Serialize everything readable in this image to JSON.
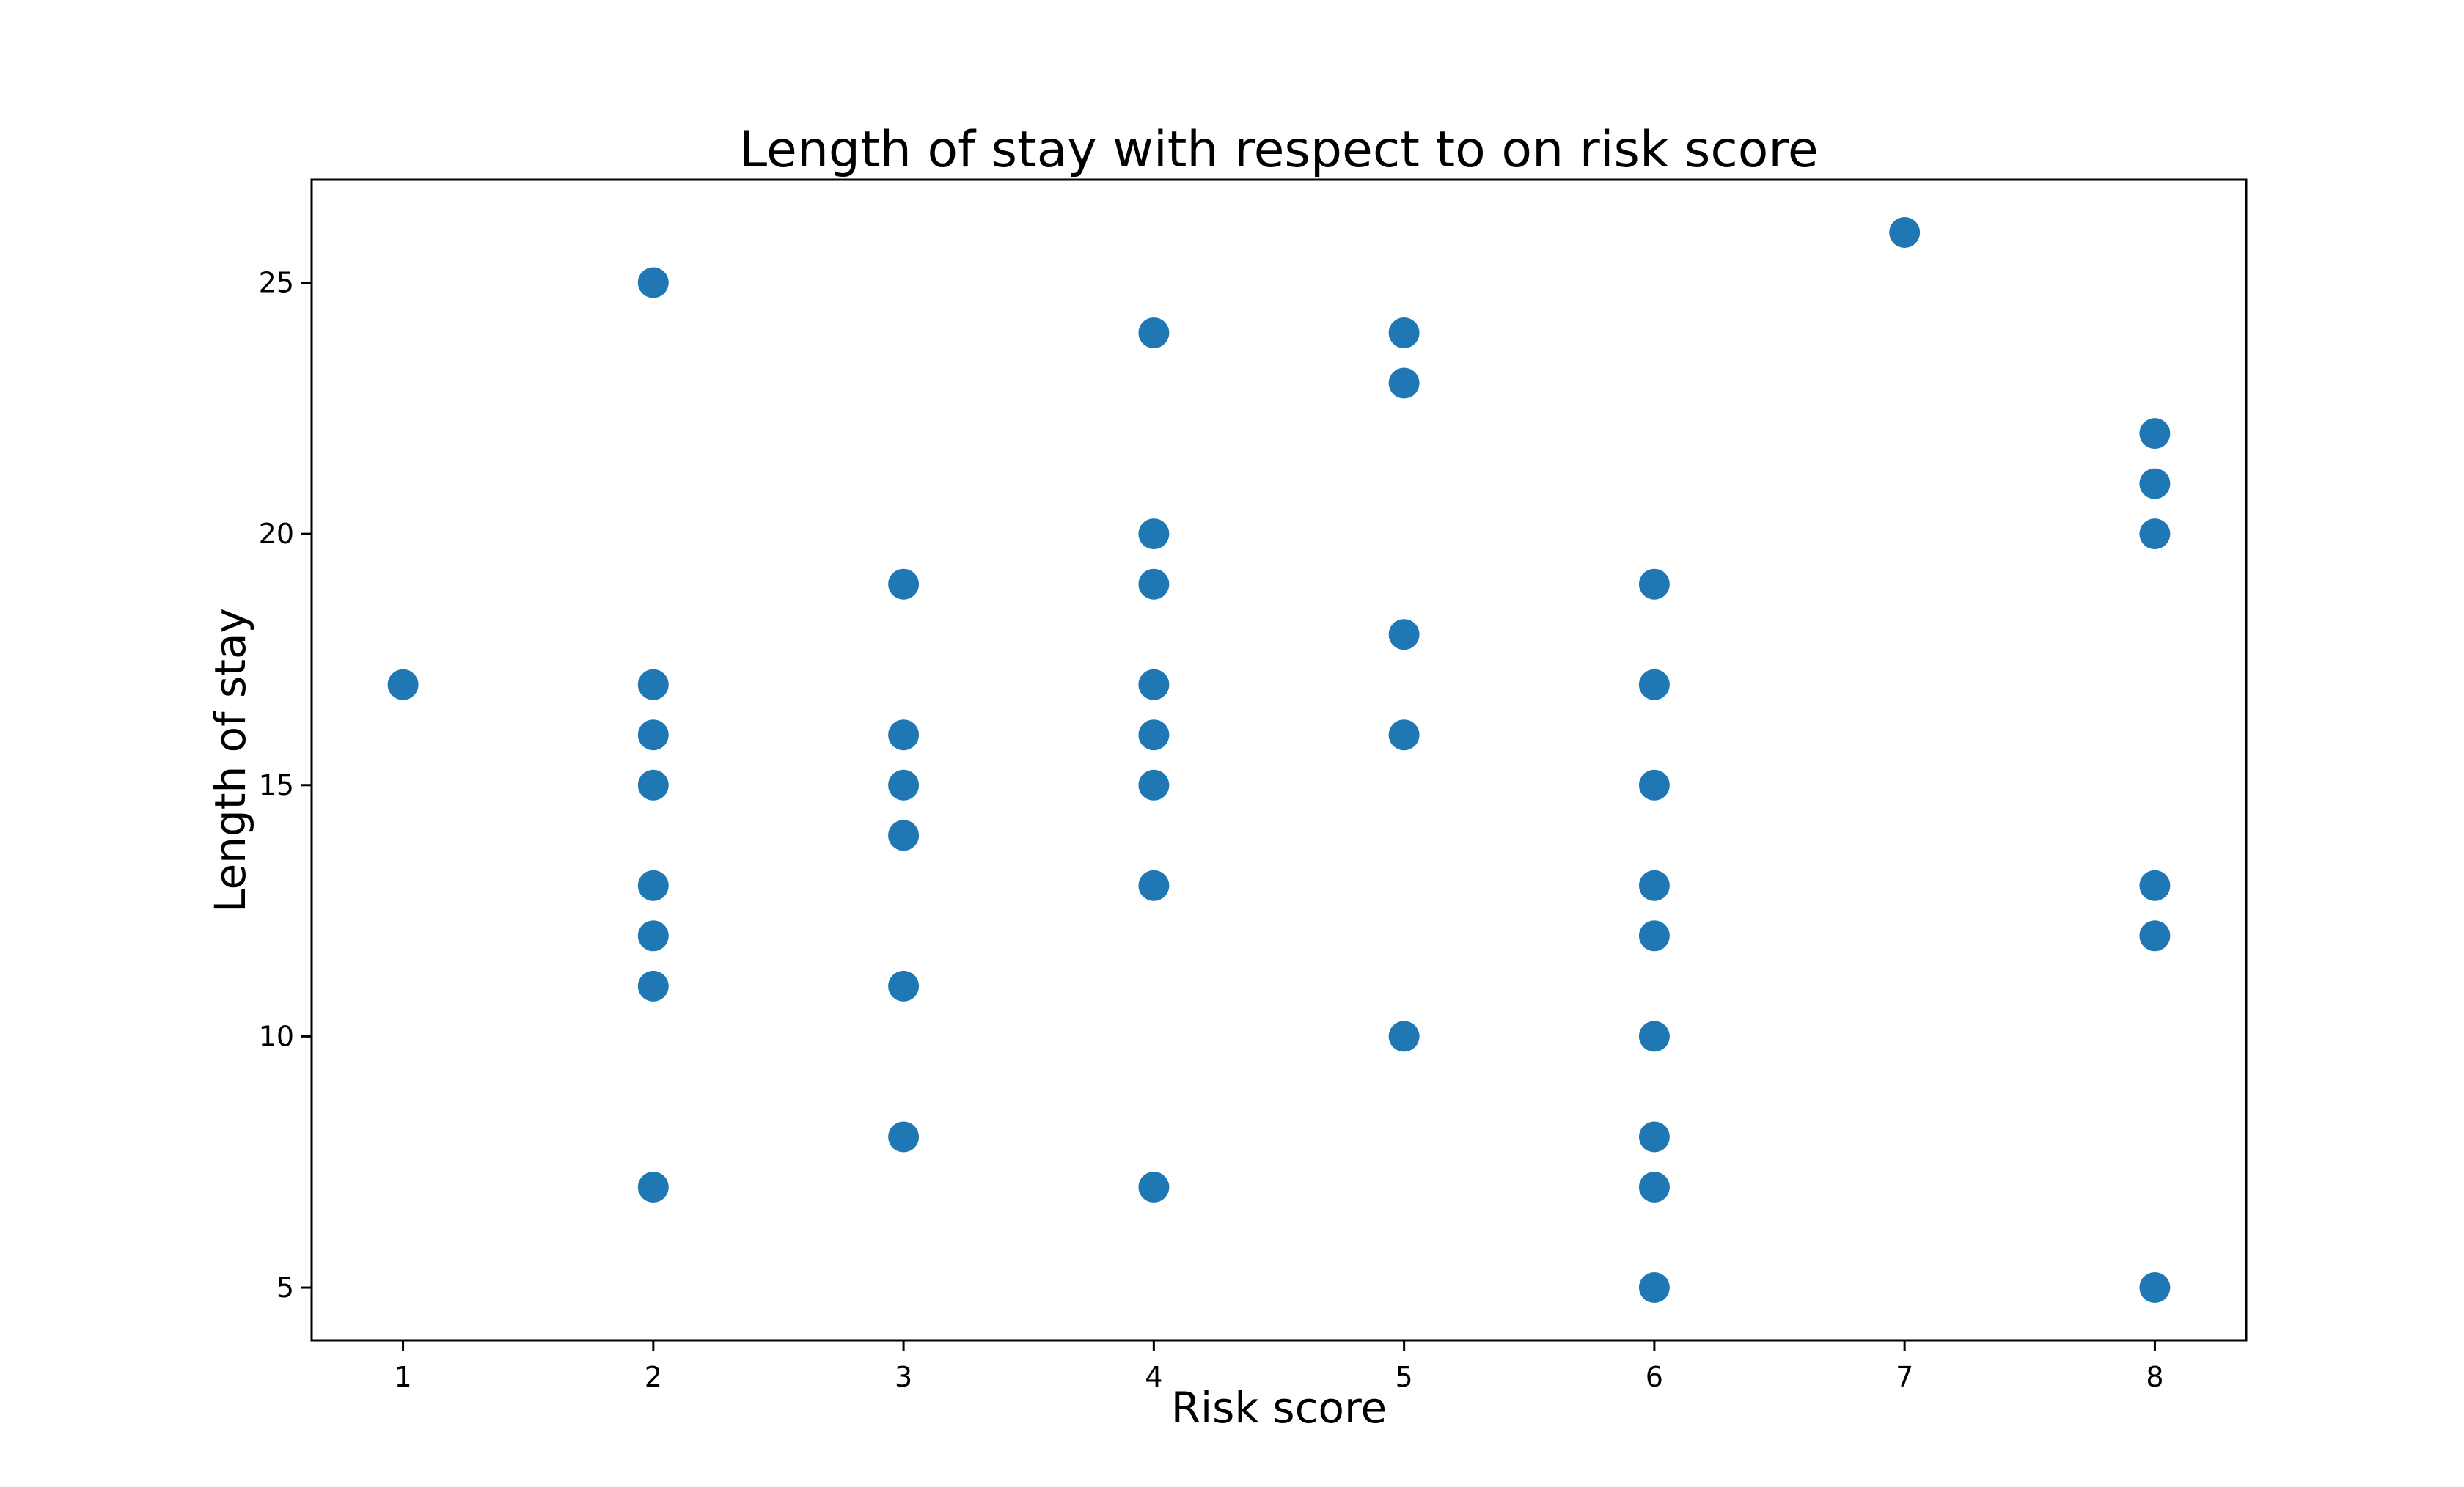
{
  "chart_data": {
    "type": "scatter",
    "title": "Length of stay with respect to on risk score",
    "xlabel": "Risk score",
    "ylabel": "Length of stay",
    "xlim": [
      0.635,
      8.365
    ],
    "ylim": [
      3.95,
      27.05
    ],
    "xticks": [
      1,
      2,
      3,
      4,
      5,
      6,
      7,
      8
    ],
    "yticks": [
      5,
      10,
      15,
      20,
      25
    ],
    "grid": false,
    "legend": "none",
    "colors": {
      "marker": "#1f77b4"
    },
    "points": [
      {
        "x": 1,
        "y": 17
      },
      {
        "x": 2,
        "y": 25
      },
      {
        "x": 2,
        "y": 17
      },
      {
        "x": 2,
        "y": 16
      },
      {
        "x": 2,
        "y": 15
      },
      {
        "x": 2,
        "y": 13
      },
      {
        "x": 2,
        "y": 12
      },
      {
        "x": 2,
        "y": 11
      },
      {
        "x": 2,
        "y": 7
      },
      {
        "x": 3,
        "y": 19
      },
      {
        "x": 3,
        "y": 16
      },
      {
        "x": 3,
        "y": 15
      },
      {
        "x": 3,
        "y": 14
      },
      {
        "x": 3,
        "y": 11
      },
      {
        "x": 3,
        "y": 8
      },
      {
        "x": 4,
        "y": 24
      },
      {
        "x": 4,
        "y": 20
      },
      {
        "x": 4,
        "y": 19
      },
      {
        "x": 4,
        "y": 17
      },
      {
        "x": 4,
        "y": 16
      },
      {
        "x": 4,
        "y": 15
      },
      {
        "x": 4,
        "y": 13
      },
      {
        "x": 4,
        "y": 7
      },
      {
        "x": 5,
        "y": 24
      },
      {
        "x": 5,
        "y": 23
      },
      {
        "x": 5,
        "y": 18
      },
      {
        "x": 5,
        "y": 16
      },
      {
        "x": 5,
        "y": 10
      },
      {
        "x": 6,
        "y": 19
      },
      {
        "x": 6,
        "y": 17
      },
      {
        "x": 6,
        "y": 15
      },
      {
        "x": 6,
        "y": 13
      },
      {
        "x": 6,
        "y": 12
      },
      {
        "x": 6,
        "y": 10
      },
      {
        "x": 6,
        "y": 8
      },
      {
        "x": 6,
        "y": 7
      },
      {
        "x": 6,
        "y": 5
      },
      {
        "x": 7,
        "y": 26
      },
      {
        "x": 8,
        "y": 22
      },
      {
        "x": 8,
        "y": 21
      },
      {
        "x": 8,
        "y": 20
      },
      {
        "x": 8,
        "y": 13
      },
      {
        "x": 8,
        "y": 12
      },
      {
        "x": 8,
        "y": 5
      }
    ]
  }
}
